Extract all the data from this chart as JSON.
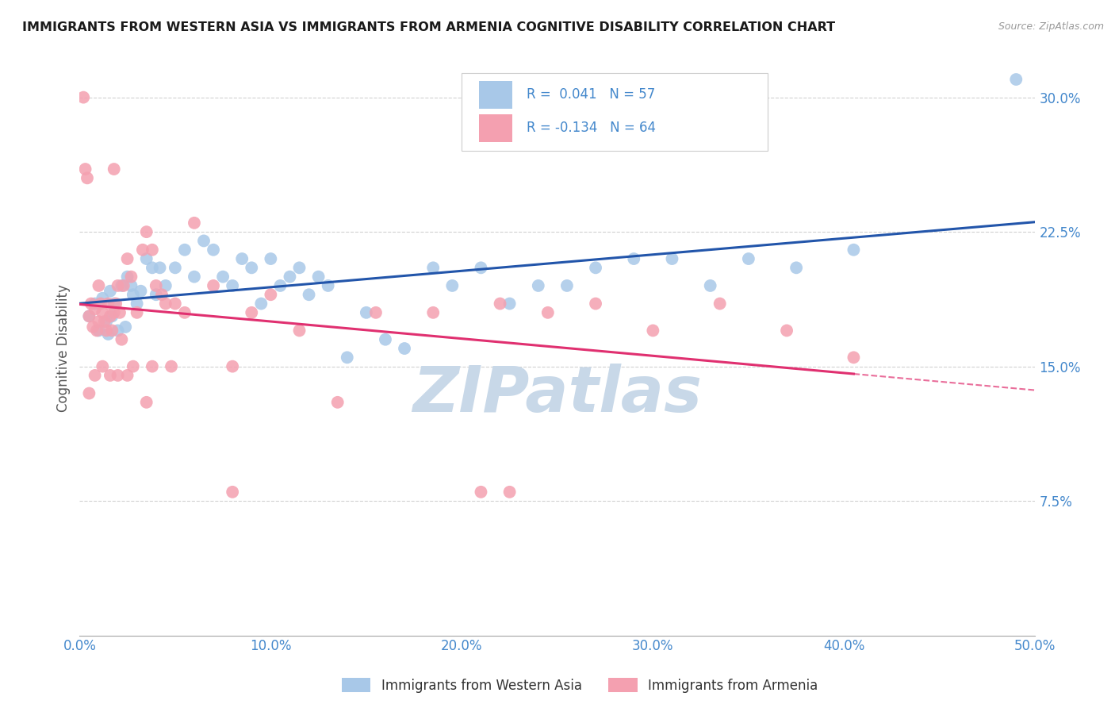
{
  "title": "IMMIGRANTS FROM WESTERN ASIA VS IMMIGRANTS FROM ARMENIA COGNITIVE DISABILITY CORRELATION CHART",
  "source": "Source: ZipAtlas.com",
  "ylabel": "Cognitive Disability",
  "legend_label_blue": "Immigrants from Western Asia",
  "legend_label_pink": "Immigrants from Armenia",
  "R_blue": 0.041,
  "N_blue": 57,
  "R_pink": -0.134,
  "N_pink": 64,
  "xlim": [
    0.0,
    50.0
  ],
  "ylim": [
    0.0,
    32.0
  ],
  "yticks": [
    7.5,
    15.0,
    22.5,
    30.0
  ],
  "xticks": [
    0.0,
    10.0,
    20.0,
    30.0,
    40.0,
    50.0
  ],
  "blue_scatter_color": "#a8c8e8",
  "pink_scatter_color": "#f4a0b0",
  "blue_line_color": "#2255aa",
  "pink_line_color": "#e03070",
  "background_color": "#ffffff",
  "grid_color": "#cccccc",
  "tick_color": "#4488cc",
  "watermark": "ZIPatlas",
  "watermark_color": "#c8d8e8",
  "blue_x": [
    0.5,
    0.8,
    1.0,
    1.2,
    1.4,
    1.5,
    1.6,
    1.7,
    1.8,
    2.0,
    2.2,
    2.4,
    2.5,
    2.7,
    2.8,
    3.0,
    3.2,
    3.5,
    3.8,
    4.0,
    4.2,
    4.5,
    5.0,
    5.5,
    6.0,
    6.5,
    7.0,
    7.5,
    8.0,
    8.5,
    9.0,
    9.5,
    10.0,
    10.5,
    11.0,
    11.5,
    12.0,
    12.5,
    13.0,
    14.0,
    15.0,
    16.0,
    17.0,
    18.5,
    19.5,
    21.0,
    22.5,
    24.0,
    25.5,
    27.0,
    29.0,
    31.0,
    33.0,
    35.0,
    37.5,
    40.5,
    49.0
  ],
  "blue_y": [
    17.8,
    18.5,
    17.0,
    18.8,
    17.5,
    16.8,
    19.2,
    17.8,
    18.5,
    17.0,
    19.5,
    17.2,
    20.0,
    19.5,
    19.0,
    18.5,
    19.2,
    21.0,
    20.5,
    19.0,
    20.5,
    19.5,
    20.5,
    21.5,
    20.0,
    22.0,
    21.5,
    20.0,
    19.5,
    21.0,
    20.5,
    18.5,
    21.0,
    19.5,
    20.0,
    20.5,
    19.0,
    20.0,
    19.5,
    15.5,
    18.0,
    16.5,
    16.0,
    20.5,
    19.5,
    20.5,
    18.5,
    19.5,
    19.5,
    20.5,
    21.0,
    21.0,
    19.5,
    21.0,
    20.5,
    21.5,
    31.0
  ],
  "pink_x": [
    0.2,
    0.3,
    0.4,
    0.5,
    0.6,
    0.7,
    0.8,
    0.9,
    1.0,
    1.0,
    1.1,
    1.2,
    1.3,
    1.4,
    1.5,
    1.6,
    1.7,
    1.8,
    1.9,
    2.0,
    2.1,
    2.2,
    2.3,
    2.5,
    2.7,
    3.0,
    3.3,
    3.5,
    3.8,
    4.0,
    4.3,
    4.5,
    5.0,
    5.5,
    6.0,
    7.0,
    8.0,
    9.0,
    10.0,
    11.5,
    13.5,
    15.5,
    18.5,
    22.0,
    24.5,
    27.0,
    30.0,
    33.5,
    37.0,
    40.5,
    21.0,
    0.5,
    1.8,
    2.5,
    3.5,
    0.8,
    1.2,
    1.6,
    2.0,
    2.8,
    3.8,
    4.8,
    8.0,
    22.5
  ],
  "pink_y": [
    30.0,
    26.0,
    25.5,
    17.8,
    18.5,
    17.2,
    18.2,
    17.0,
    17.5,
    19.5,
    18.5,
    18.0,
    17.5,
    17.0,
    18.5,
    17.8,
    17.0,
    18.0,
    18.5,
    19.5,
    18.0,
    16.5,
    19.5,
    21.0,
    20.0,
    18.0,
    21.5,
    22.5,
    21.5,
    19.5,
    19.0,
    18.5,
    18.5,
    18.0,
    23.0,
    19.5,
    15.0,
    18.0,
    19.0,
    17.0,
    13.0,
    18.0,
    18.0,
    18.5,
    18.0,
    18.5,
    17.0,
    18.5,
    17.0,
    15.5,
    8.0,
    13.5,
    26.0,
    14.5,
    13.0,
    14.5,
    15.0,
    14.5,
    14.5,
    15.0,
    15.0,
    15.0,
    8.0,
    8.0
  ]
}
